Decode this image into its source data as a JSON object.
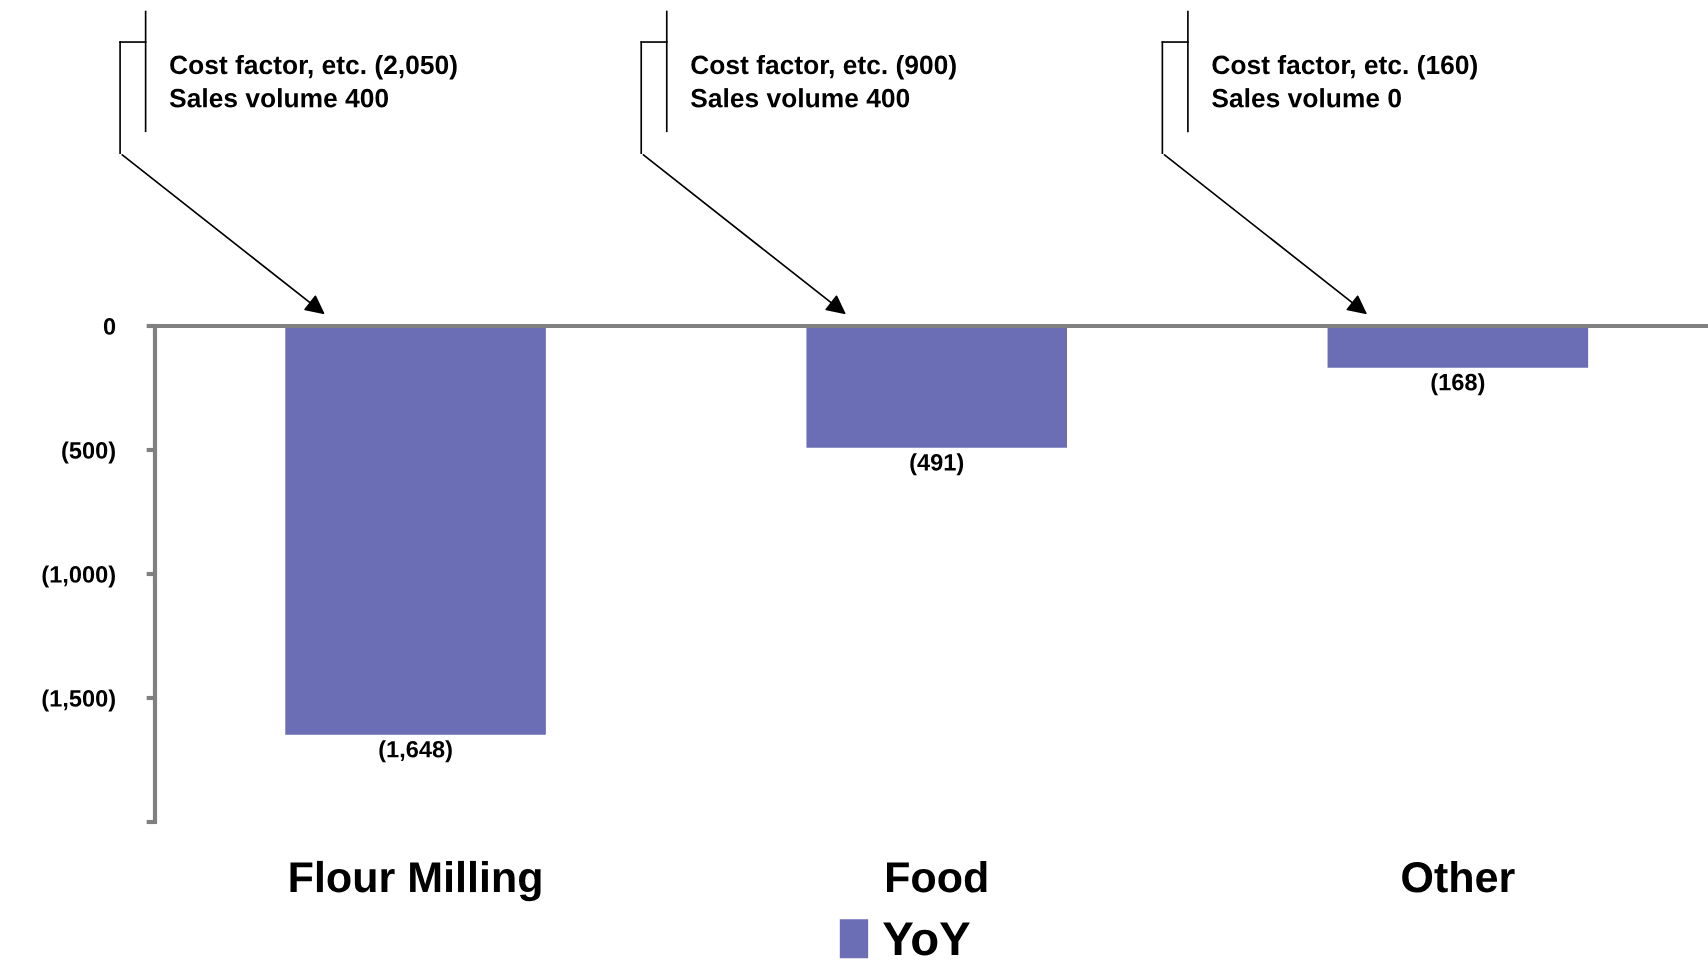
{
  "chart_data": {
    "type": "bar",
    "categories": [
      "Flour Milling",
      "Food",
      "Other"
    ],
    "series": [
      {
        "name": "YoY",
        "color": "#6b6db5",
        "values": [
          -1648,
          -491,
          -168
        ],
        "value_labels": [
          "(1,648)",
          "(491)",
          "(168)"
        ]
      }
    ],
    "ylim": [
      -2000,
      0
    ],
    "yticks": [
      {
        "value": 0,
        "label": "0"
      },
      {
        "value": -500,
        "label": "(500)"
      },
      {
        "value": -1000,
        "label": "(1,000)"
      },
      {
        "value": -1500,
        "label": "(1,500)"
      },
      {
        "value": -2000,
        "label": null
      }
    ],
    "annotations": [
      "Cost factor, etc. (2,050)\nSales volume 400",
      "Cost factor, etc. (900)\nSales volume 400",
      "Cost factor, etc. (160)\nSales volume 0"
    ],
    "legend": "bottom",
    "grid": false
  }
}
